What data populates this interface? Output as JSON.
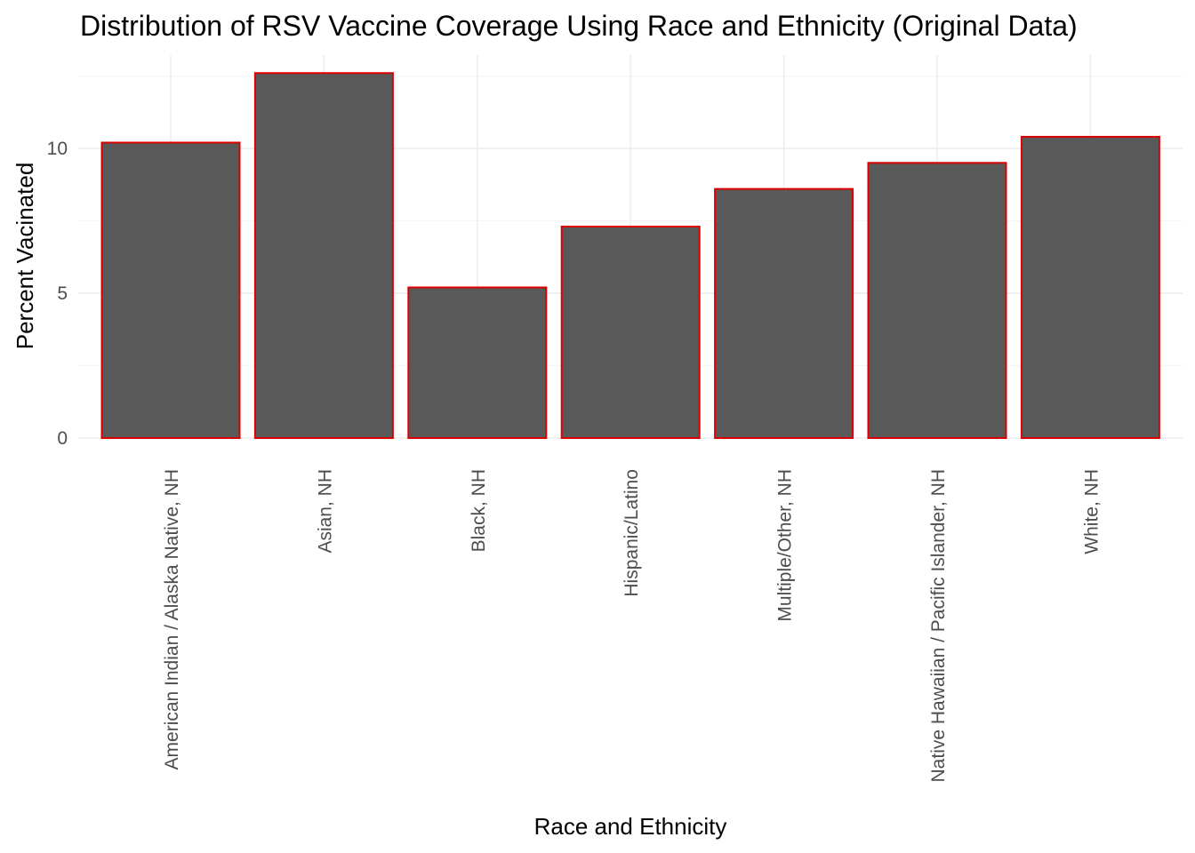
{
  "chart_data": {
    "type": "bar",
    "title": "Distribution of RSV Vaccine Coverage Using Race and Ethnicity (Original Data)",
    "xlabel": "Race and Ethnicity",
    "ylabel": "Percent Vacinated",
    "categories": [
      "American Indian / Alaska Native, NH",
      "Asian, NH",
      "Black, NH",
      "Hispanic/Latino",
      "Multiple/Other, NH",
      "Native Hawaiian / Pacific Islander, NH",
      "White, NH"
    ],
    "values": [
      10.2,
      12.6,
      5.2,
      7.3,
      8.6,
      9.5,
      10.4
    ],
    "ylim": [
      0,
      12.6
    ],
    "yticks": [
      0,
      5,
      10
    ],
    "grid": true,
    "legend": "none",
    "colors": {
      "bar_fill": "#595959",
      "bar_outline": "#dd0000"
    }
  }
}
